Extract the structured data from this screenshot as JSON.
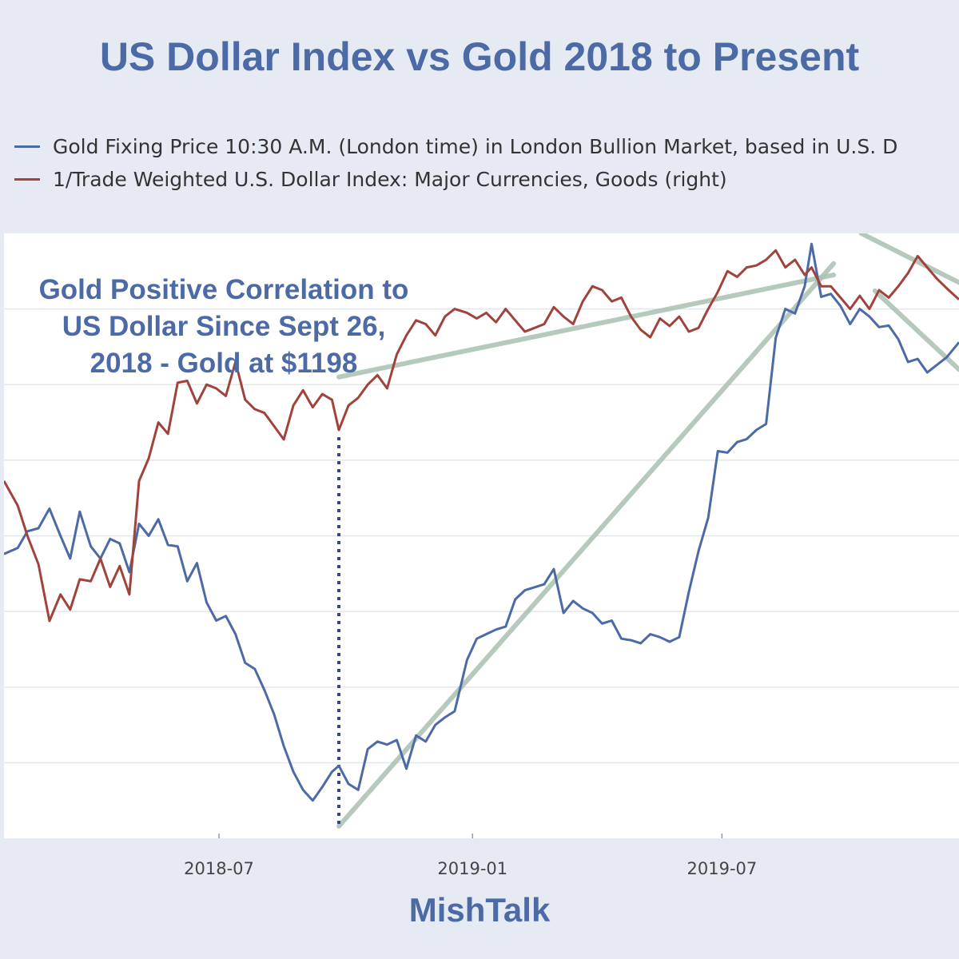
{
  "chart_data": {
    "type": "line",
    "title": "US Dollar Index vs Gold 2018 to Present",
    "annotation": "Gold Positive Correlation to US Dollar Since Sept 26, 2018 - Gold at $1198",
    "watermark": "MishTalk",
    "x_ticks": [
      "2018-07",
      "2019-01",
      "2019-07"
    ],
    "xlim": [
      "2018-01-26",
      "2019-12-20"
    ],
    "grid": true,
    "legend_placement": "top-left",
    "series": [
      {
        "name": "Gold Fixing Price 10:30 A.M. (London time) in London Bullion Market, based in U.S. D",
        "color": "#4c6aa6",
        "axis": "left",
        "ylim": [
          1150,
          1550
        ],
        "points": [
          [
            "2018-01-26",
            1338
          ],
          [
            "2018-02-05",
            1342
          ],
          [
            "2018-02-12",
            1353
          ],
          [
            "2018-02-20",
            1355
          ],
          [
            "2018-02-28",
            1368
          ],
          [
            "2018-03-08",
            1350
          ],
          [
            "2018-03-15",
            1335
          ],
          [
            "2018-03-22",
            1366
          ],
          [
            "2018-03-30",
            1343
          ],
          [
            "2018-04-06",
            1335
          ],
          [
            "2018-04-13",
            1348
          ],
          [
            "2018-04-20",
            1345
          ],
          [
            "2018-04-27",
            1326
          ],
          [
            "2018-05-04",
            1358
          ],
          [
            "2018-05-11",
            1350
          ],
          [
            "2018-05-18",
            1361
          ],
          [
            "2018-05-25",
            1344
          ],
          [
            "2018-06-01",
            1343
          ],
          [
            "2018-06-08",
            1320
          ],
          [
            "2018-06-15",
            1332
          ],
          [
            "2018-06-22",
            1306
          ],
          [
            "2018-06-29",
            1294
          ],
          [
            "2018-07-06",
            1297
          ],
          [
            "2018-07-13",
            1285
          ],
          [
            "2018-07-20",
            1266
          ],
          [
            "2018-07-27",
            1262
          ],
          [
            "2018-08-03",
            1248
          ],
          [
            "2018-08-10",
            1232
          ],
          [
            "2018-08-17",
            1211
          ],
          [
            "2018-08-24",
            1194
          ],
          [
            "2018-08-31",
            1182
          ],
          [
            "2018-09-07",
            1175
          ],
          [
            "2018-09-14",
            1184
          ],
          [
            "2018-09-21",
            1194
          ],
          [
            "2018-09-26",
            1198
          ],
          [
            "2018-10-03",
            1186
          ],
          [
            "2018-10-10",
            1182
          ],
          [
            "2018-10-17",
            1209
          ],
          [
            "2018-10-24",
            1214
          ],
          [
            "2018-10-31",
            1212
          ],
          [
            "2018-11-07",
            1215
          ],
          [
            "2018-11-14",
            1196
          ],
          [
            "2018-11-21",
            1218
          ],
          [
            "2018-11-28",
            1214
          ],
          [
            "2018-12-05",
            1225
          ],
          [
            "2018-12-12",
            1230
          ],
          [
            "2018-12-19",
            1234
          ],
          [
            "2018-12-28",
            1268
          ],
          [
            "2019-01-04",
            1282
          ],
          [
            "2019-01-11",
            1285
          ],
          [
            "2019-01-18",
            1288
          ],
          [
            "2019-01-25",
            1290
          ],
          [
            "2019-02-01",
            1308
          ],
          [
            "2019-02-08",
            1314
          ],
          [
            "2019-02-15",
            1316
          ],
          [
            "2019-02-22",
            1318
          ],
          [
            "2019-03-01",
            1328
          ],
          [
            "2019-03-08",
            1299
          ],
          [
            "2019-03-15",
            1307
          ],
          [
            "2019-03-22",
            1302
          ],
          [
            "2019-03-29",
            1299
          ],
          [
            "2019-04-05",
            1292
          ],
          [
            "2019-04-12",
            1294
          ],
          [
            "2019-04-19",
            1282
          ],
          [
            "2019-04-26",
            1281
          ],
          [
            "2019-05-03",
            1279
          ],
          [
            "2019-05-10",
            1285
          ],
          [
            "2019-05-17",
            1283
          ],
          [
            "2019-05-24",
            1280
          ],
          [
            "2019-05-31",
            1283
          ],
          [
            "2019-06-07",
            1313
          ],
          [
            "2019-06-14",
            1340
          ],
          [
            "2019-06-21",
            1362
          ],
          [
            "2019-06-28",
            1406
          ],
          [
            "2019-07-05",
            1405
          ],
          [
            "2019-07-12",
            1412
          ],
          [
            "2019-07-19",
            1414
          ],
          [
            "2019-07-26",
            1420
          ],
          [
            "2019-08-02",
            1424
          ],
          [
            "2019-08-09",
            1481
          ],
          [
            "2019-08-16",
            1500
          ],
          [
            "2019-08-23",
            1497
          ],
          [
            "2019-08-30",
            1515
          ],
          [
            "2019-09-04",
            1543
          ],
          [
            "2019-09-11",
            1508
          ],
          [
            "2019-09-18",
            1510
          ],
          [
            "2019-09-25",
            1502
          ],
          [
            "2019-10-02",
            1490
          ],
          [
            "2019-10-09",
            1500
          ],
          [
            "2019-10-16",
            1495
          ],
          [
            "2019-10-23",
            1488
          ],
          [
            "2019-10-30",
            1489
          ],
          [
            "2019-11-06",
            1480
          ],
          [
            "2019-11-13",
            1465
          ],
          [
            "2019-11-20",
            1467
          ],
          [
            "2019-11-27",
            1458
          ],
          [
            "2019-12-04",
            1463
          ],
          [
            "2019-12-11",
            1468
          ],
          [
            "2019-12-20",
            1478
          ]
        ]
      },
      {
        "name": "1/Trade Weighted U.S. Dollar Index: Major Currencies, Goods (right)",
        "color": "#a0433b",
        "axis": "right",
        "ylim": [
          0.0105,
          0.0121
        ],
        "points": [
          [
            "2018-01-26",
            0.011445
          ],
          [
            "2018-02-05",
            0.01138
          ],
          [
            "2018-02-12",
            0.0113
          ],
          [
            "2018-02-20",
            0.011225
          ],
          [
            "2018-02-28",
            0.011075
          ],
          [
            "2018-03-08",
            0.011145
          ],
          [
            "2018-03-15",
            0.011105
          ],
          [
            "2018-03-22",
            0.011185
          ],
          [
            "2018-03-30",
            0.01118
          ],
          [
            "2018-04-06",
            0.01124
          ],
          [
            "2018-04-13",
            0.011165
          ],
          [
            "2018-04-20",
            0.01122
          ],
          [
            "2018-04-27",
            0.011145
          ],
          [
            "2018-05-04",
            0.011445
          ],
          [
            "2018-05-11",
            0.011505
          ],
          [
            "2018-05-18",
            0.0116
          ],
          [
            "2018-05-25",
            0.01157
          ],
          [
            "2018-06-01",
            0.011705
          ],
          [
            "2018-06-08",
            0.01171
          ],
          [
            "2018-06-15",
            0.01165
          ],
          [
            "2018-06-22",
            0.0117
          ],
          [
            "2018-06-29",
            0.01169
          ],
          [
            "2018-07-06",
            0.01167
          ],
          [
            "2018-07-13",
            0.01176
          ],
          [
            "2018-07-20",
            0.01166
          ],
          [
            "2018-07-27",
            0.011635
          ],
          [
            "2018-08-03",
            0.011625
          ],
          [
            "2018-08-10",
            0.01159
          ],
          [
            "2018-08-17",
            0.011555
          ],
          [
            "2018-08-24",
            0.011645
          ],
          [
            "2018-08-31",
            0.011685
          ],
          [
            "2018-09-07",
            0.01164
          ],
          [
            "2018-09-14",
            0.011675
          ],
          [
            "2018-09-21",
            0.01166
          ],
          [
            "2018-09-26",
            0.01158
          ],
          [
            "2018-10-03",
            0.011645
          ],
          [
            "2018-10-10",
            0.011665
          ],
          [
            "2018-10-17",
            0.0117
          ],
          [
            "2018-10-24",
            0.011725
          ],
          [
            "2018-10-31",
            0.01169
          ],
          [
            "2018-11-07",
            0.01178
          ],
          [
            "2018-11-14",
            0.01183
          ],
          [
            "2018-11-21",
            0.01187
          ],
          [
            "2018-11-28",
            0.01186
          ],
          [
            "2018-12-05",
            0.01183
          ],
          [
            "2018-12-12",
            0.01188
          ],
          [
            "2018-12-19",
            0.0119
          ],
          [
            "2018-12-28",
            0.01189
          ],
          [
            "2019-01-04",
            0.011875
          ],
          [
            "2019-01-11",
            0.01189
          ],
          [
            "2019-01-18",
            0.011865
          ],
          [
            "2019-01-25",
            0.0119
          ],
          [
            "2019-02-01",
            0.01187
          ],
          [
            "2019-02-08",
            0.01184
          ],
          [
            "2019-02-15",
            0.01185
          ],
          [
            "2019-02-22",
            0.01186
          ],
          [
            "2019-03-01",
            0.011905
          ],
          [
            "2019-03-08",
            0.01188
          ],
          [
            "2019-03-15",
            0.01186
          ],
          [
            "2019-03-22",
            0.01192
          ],
          [
            "2019-03-29",
            0.01196
          ],
          [
            "2019-04-05",
            0.01195
          ],
          [
            "2019-04-12",
            0.01192
          ],
          [
            "2019-04-19",
            0.01193
          ],
          [
            "2019-04-26",
            0.01188
          ],
          [
            "2019-05-03",
            0.011845
          ],
          [
            "2019-05-10",
            0.011825
          ],
          [
            "2019-05-17",
            0.011875
          ],
          [
            "2019-05-24",
            0.011855
          ],
          [
            "2019-05-31",
            0.01188
          ],
          [
            "2019-06-07",
            0.01184
          ],
          [
            "2019-06-14",
            0.01185
          ],
          [
            "2019-06-21",
            0.0119
          ],
          [
            "2019-06-28",
            0.011945
          ],
          [
            "2019-07-05",
            0.012
          ],
          [
            "2019-07-12",
            0.011985
          ],
          [
            "2019-07-19",
            0.01201
          ],
          [
            "2019-07-26",
            0.012015
          ],
          [
            "2019-08-02",
            0.01203
          ],
          [
            "2019-08-09",
            0.012055
          ],
          [
            "2019-08-16",
            0.01201
          ],
          [
            "2019-08-23",
            0.01203
          ],
          [
            "2019-08-30",
            0.01199
          ],
          [
            "2019-09-04",
            0.01201
          ],
          [
            "2019-09-11",
            0.01196
          ],
          [
            "2019-09-18",
            0.01196
          ],
          [
            "2019-09-25",
            0.01193
          ],
          [
            "2019-10-02",
            0.0119
          ],
          [
            "2019-10-09",
            0.011935
          ],
          [
            "2019-10-16",
            0.0119
          ],
          [
            "2019-10-23",
            0.01195
          ],
          [
            "2019-10-30",
            0.01193
          ],
          [
            "2019-11-06",
            0.01196
          ],
          [
            "2019-11-13",
            0.011995
          ],
          [
            "2019-11-20",
            0.01204
          ],
          [
            "2019-11-27",
            0.01201
          ],
          [
            "2019-12-04",
            0.01198
          ],
          [
            "2019-12-11",
            0.011955
          ],
          [
            "2019-12-20",
            0.011925
          ]
        ]
      }
    ],
    "trendlines": [
      {
        "color": "#a9c1b1",
        "axis": "left",
        "points": [
          [
            "2018-09-26",
            1158
          ],
          [
            "2019-09-20",
            1530
          ]
        ]
      },
      {
        "color": "#a9c1b1",
        "axis": "right",
        "points": [
          [
            "2018-09-26",
            0.01172
          ],
          [
            "2019-09-20",
            0.01199
          ]
        ]
      },
      {
        "color": "#a9c1b1",
        "axis": "right",
        "points": [
          [
            "2019-10-10",
            0.0121
          ],
          [
            "2019-12-20",
            0.01197
          ]
        ]
      },
      {
        "color": "#a9c1b1",
        "axis": "left",
        "points": [
          [
            "2019-10-20",
            1512
          ],
          [
            "2019-12-20",
            1460
          ]
        ]
      }
    ],
    "vertical_marker": {
      "date": "2018-09-26",
      "color": "#36497f",
      "style": "dotted"
    }
  }
}
